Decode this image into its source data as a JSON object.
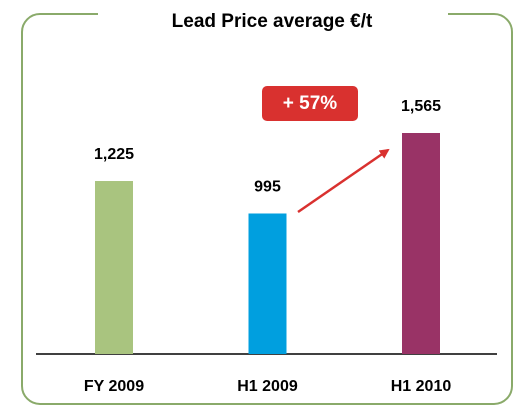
{
  "chart_data": {
    "type": "bar",
    "title": "Lead Price average €/t",
    "categories": [
      "FY 2009",
      "H1 2009",
      "H1 2010"
    ],
    "values": [
      1225,
      995,
      1565
    ],
    "value_labels": [
      "1,225",
      "995",
      "1,565"
    ],
    "colors": [
      "#a9c47f",
      "#009fdf",
      "#993366"
    ],
    "annotation": "+ 57%"
  }
}
